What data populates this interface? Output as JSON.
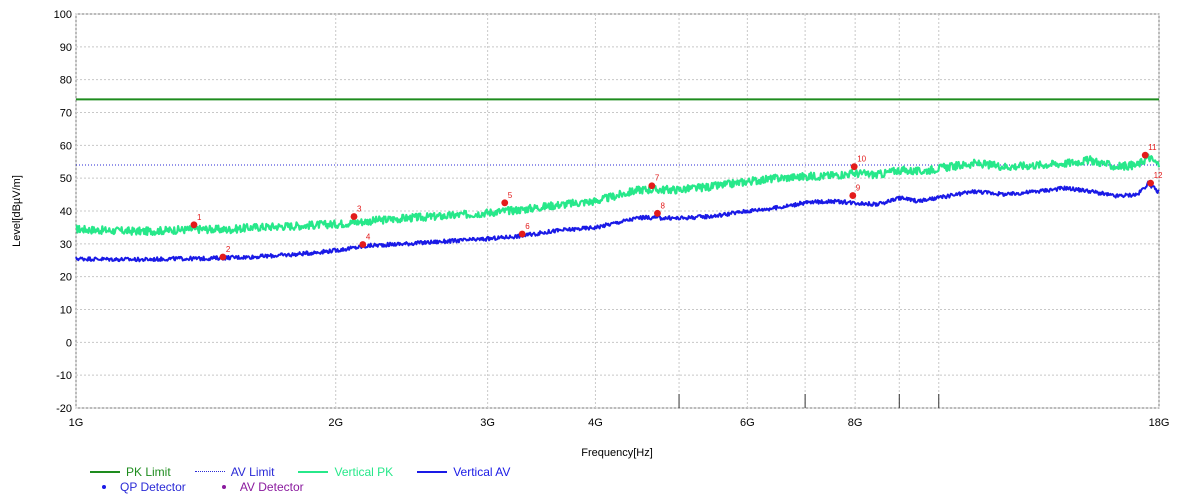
{
  "chart_data": {
    "type": "line",
    "xlabel": "Frequency[Hz]",
    "ylabel": "Level[dBµV/m]",
    "x_scale": "log",
    "xlim": [
      1,
      18
    ],
    "ylim": [
      -20,
      100
    ],
    "grid": true,
    "y_ticks": [
      100,
      90,
      80,
      70,
      60,
      50,
      40,
      30,
      20,
      10,
      0,
      -10,
      -20
    ],
    "x_ticks": [
      {
        "value": 1,
        "label": "1G"
      },
      {
        "value": 2,
        "label": "2G"
      },
      {
        "value": 3,
        "label": "3G"
      },
      {
        "value": 4,
        "label": "4G"
      },
      {
        "value": 6,
        "label": "6G"
      },
      {
        "value": 8,
        "label": "8G"
      },
      {
        "value": 18,
        "label": "18G"
      }
    ],
    "x_minor_grid": [
      5,
      7,
      9,
      10
    ],
    "limits": [
      {
        "name": "PK Limit",
        "value": 74,
        "color": "#1e8c1e",
        "style": "solid"
      },
      {
        "name": "AV Limit",
        "value": 54,
        "color": "#2a2ad6",
        "style": "dotted"
      }
    ],
    "series": [
      {
        "name": "Vertical PK",
        "color": "#27e88a",
        "x": [
          1.0,
          1.1,
          1.2,
          1.3,
          1.4,
          1.5,
          1.6,
          1.8,
          2.0,
          2.2,
          2.4,
          2.7,
          3.0,
          3.3,
          3.6,
          4.0,
          4.5,
          5.0,
          5.5,
          6.0,
          6.5,
          7.0,
          7.5,
          8.0,
          8.5,
          9.0,
          9.5,
          10.0,
          11.0,
          12.0,
          13.0,
          14.0,
          15.0,
          16.0,
          17.0,
          17.5,
          18.0
        ],
        "values": [
          34.5,
          34.0,
          33.8,
          34.2,
          34.5,
          34.3,
          35.0,
          35.5,
          36.0,
          37.0,
          37.8,
          38.5,
          39.5,
          40.5,
          41.8,
          43.0,
          46.5,
          46.5,
          47.5,
          49.0,
          50.0,
          50.5,
          50.8,
          51.5,
          51.0,
          52.5,
          52.0,
          53.0,
          54.5,
          53.5,
          54.0,
          54.5,
          55.5,
          53.5,
          54.0,
          56.5,
          54.0
        ]
      },
      {
        "name": "Vertical AV",
        "color": "#1a1ae6",
        "x": [
          1.0,
          1.1,
          1.2,
          1.3,
          1.4,
          1.5,
          1.6,
          1.8,
          2.0,
          2.2,
          2.4,
          2.7,
          3.0,
          3.3,
          3.6,
          4.0,
          4.5,
          5.0,
          5.5,
          6.0,
          6.5,
          7.0,
          7.5,
          8.0,
          8.5,
          9.0,
          9.5,
          10.0,
          11.0,
          12.0,
          13.0,
          14.0,
          15.0,
          16.0,
          17.0,
          17.5,
          18.0
        ],
        "values": [
          25.5,
          25.3,
          25.2,
          25.5,
          25.5,
          25.8,
          26.0,
          26.8,
          28.0,
          29.5,
          30.0,
          30.8,
          31.5,
          32.5,
          34.0,
          35.0,
          38.0,
          37.8,
          38.5,
          40.0,
          41.0,
          42.5,
          43.0,
          42.5,
          42.0,
          44.0,
          43.0,
          44.0,
          46.0,
          45.0,
          46.0,
          47.0,
          46.0,
          44.5,
          45.0,
          48.5,
          45.5
        ]
      }
    ],
    "markers": [
      {
        "label": "1",
        "x": 1.37,
        "value": 35.8,
        "detector": "PK"
      },
      {
        "label": "2",
        "x": 1.48,
        "value": 26.0,
        "detector": "AV"
      },
      {
        "label": "3",
        "x": 2.1,
        "value": 38.3,
        "detector": "PK"
      },
      {
        "label": "4",
        "x": 2.15,
        "value": 29.8,
        "detector": "AV"
      },
      {
        "label": "5",
        "x": 3.14,
        "value": 42.5,
        "detector": "PK"
      },
      {
        "label": "6",
        "x": 3.29,
        "value": 33.0,
        "detector": "AV"
      },
      {
        "label": "7",
        "x": 4.65,
        "value": 47.7,
        "detector": "PK"
      },
      {
        "label": "8",
        "x": 4.72,
        "value": 39.3,
        "detector": "AV"
      },
      {
        "label": "9",
        "x": 7.95,
        "value": 44.7,
        "detector": "AV"
      },
      {
        "label": "10",
        "x": 7.98,
        "value": 53.5,
        "detector": "PK"
      },
      {
        "label": "11",
        "x": 17.35,
        "value": 57.0,
        "detector": "PK"
      },
      {
        "label": "12",
        "x": 17.6,
        "value": 48.5,
        "detector": "AV"
      }
    ],
    "marker_color": "#e31b1b"
  },
  "legend": {
    "row1": [
      {
        "name": "PK Limit",
        "color": "#1e8c1e",
        "style": "solid"
      },
      {
        "name": "AV Limit",
        "color": "#2a2ad6",
        "style": "dotted"
      },
      {
        "name": "Vertical PK",
        "color": "#27e88a",
        "style": "solid"
      },
      {
        "name": "Vertical AV",
        "color": "#1a1ae6",
        "style": "solid"
      }
    ],
    "row2": [
      {
        "name": "QP Detector",
        "color": "#1a1ae6"
      },
      {
        "name": "AV Detector",
        "color": "#8a1a9e"
      }
    ]
  }
}
